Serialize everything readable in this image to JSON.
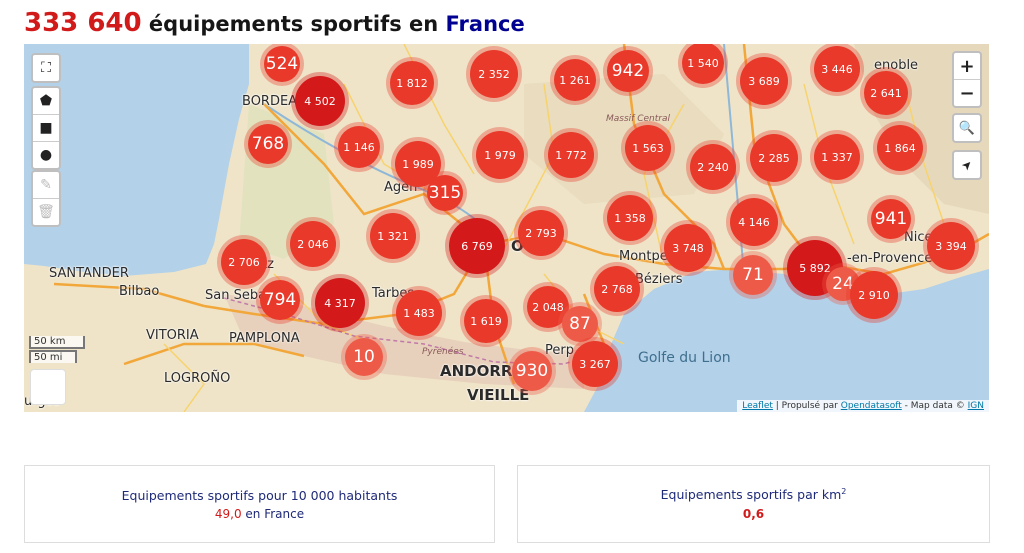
{
  "header": {
    "count": "333 640",
    "text": " équipements sportifs en ",
    "place": "France"
  },
  "map": {
    "labels": {
      "bordeaux": "BORDEA",
      "agen": "Agen",
      "santander": "SANTANDER",
      "bilbao": "Bilbao",
      "san_sebastian": "San Seba",
      "vitoria": "VITORIA",
      "pamplona": "PAMPLONA",
      "logrono": "LOGROÑO",
      "burgos": "urgos",
      "tarbes": "Tarbes",
      "pyrenees": "Pyrénées",
      "andorra": "ANDORR",
      "vieille": "VIEILLE",
      "perpignan": "Perp",
      "montpellier": "Montpel",
      "beziers": "Béziers",
      "golfe": "Golfe du Lion",
      "massif": "Massif Central",
      "aix": "-en-Provence",
      "nice": "Nice",
      "grenoble": "enoble",
      "toulouse": "OUL",
      "tz": "tz"
    },
    "clusters": [
      {
        "value": "524"
      },
      {
        "value": "4 502"
      },
      {
        "value": "768"
      },
      {
        "value": "1 812"
      },
      {
        "value": "2 352"
      },
      {
        "value": "1 261"
      },
      {
        "value": "942"
      },
      {
        "value": "1 540"
      },
      {
        "value": "3 689"
      },
      {
        "value": "3 446"
      },
      {
        "value": "2 641"
      },
      {
        "value": "1 146"
      },
      {
        "value": "1 989"
      },
      {
        "value": "1 979"
      },
      {
        "value": "1 772"
      },
      {
        "value": "1 563"
      },
      {
        "value": "2 240"
      },
      {
        "value": "2 285"
      },
      {
        "value": "1 337"
      },
      {
        "value": "1 864"
      },
      {
        "value": "315"
      },
      {
        "value": "941"
      },
      {
        "value": "2 706"
      },
      {
        "value": "2 046"
      },
      {
        "value": "1 321"
      },
      {
        "value": "6 769"
      },
      {
        "value": "2 793"
      },
      {
        "value": "1 358"
      },
      {
        "value": "4 146"
      },
      {
        "value": "3 748"
      },
      {
        "value": "3 394"
      },
      {
        "value": "794"
      },
      {
        "value": "4 317"
      },
      {
        "value": "71"
      },
      {
        "value": "5 892"
      },
      {
        "value": "24"
      },
      {
        "value": "2 910"
      },
      {
        "value": "1 483"
      },
      {
        "value": "1 619"
      },
      {
        "value": "2 048"
      },
      {
        "value": "2 768"
      },
      {
        "value": "87"
      },
      {
        "value": "10"
      },
      {
        "value": "930"
      },
      {
        "value": "3 267"
      }
    ],
    "scale": {
      "km": "50 km",
      "mi": "50 mi"
    },
    "controls": {
      "zoom_in": "+",
      "zoom_out": "−",
      "search": "🔍",
      "locate": "➤",
      "fullscreen": "⛶",
      "draw_polygon": "⬟",
      "draw_rectangle": "■",
      "draw_circle": "●",
      "edit": "✎",
      "delete": "🗑"
    },
    "attribution": {
      "leaflet": "Leaflet",
      "sep1": " | Propulsé par ",
      "ods": "Opendatasoft",
      "sep2": " - Map data © ",
      "ign": "IGN"
    }
  },
  "cards": [
    {
      "label": "Equipements sportifs pour 10 000 habitants",
      "value": "49,0",
      "context": " en France"
    },
    {
      "label": "Equipements sportifs par km",
      "sup": "2",
      "value": "0,6"
    }
  ]
}
